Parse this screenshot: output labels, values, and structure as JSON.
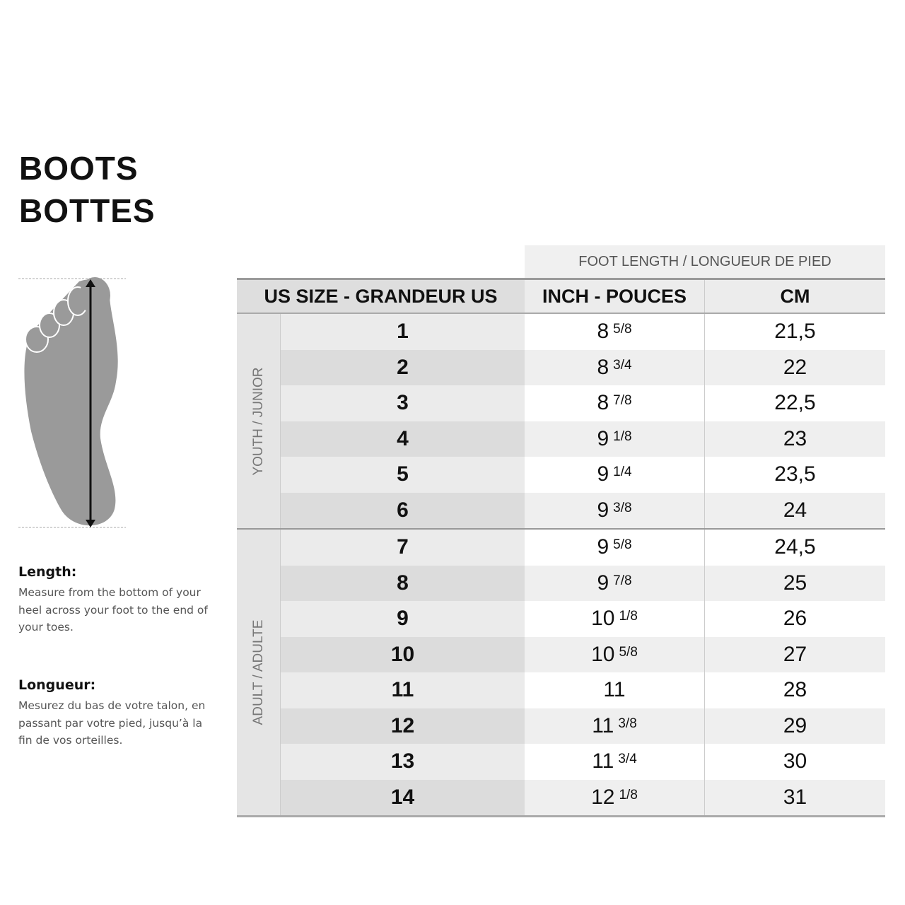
{
  "title": [
    "BOOTS",
    "BOTTES"
  ],
  "foot_icon": "foot-length-diagram",
  "notes": [
    {
      "heading": "Length:",
      "text": "Measure from the bottom of your heel across your foot to the end of your toes."
    },
    {
      "heading": "Longueur:",
      "text": "Mesurez du bas de votre talon, en passant par votre pied, jusqu’à la fin de vos orteilles."
    }
  ],
  "table": {
    "super_header": "FOOT LENGTH / LONGUEUR DE PIED",
    "headers": [
      "US SIZE - GRANDEUR US",
      "INCH - POUCES",
      "CM"
    ],
    "groups": [
      {
        "label": "YOUTH / JUNIOR",
        "rows": [
          {
            "size": "1",
            "inch": "8",
            "frac": "5/8",
            "cm": "21,5"
          },
          {
            "size": "2",
            "inch": "8",
            "frac": "3/4",
            "cm": "22"
          },
          {
            "size": "3",
            "inch": "8",
            "frac": "7/8",
            "cm": "22,5"
          },
          {
            "size": "4",
            "inch": "9",
            "frac": "1/8",
            "cm": "23"
          },
          {
            "size": "5",
            "inch": "9",
            "frac": "1/4",
            "cm": "23,5"
          },
          {
            "size": "6",
            "inch": "9",
            "frac": "3/8",
            "cm": "24"
          }
        ]
      },
      {
        "label": "ADULT / ADULTE",
        "rows": [
          {
            "size": "7",
            "inch": "9",
            "frac": "5/8",
            "cm": "24,5"
          },
          {
            "size": "8",
            "inch": "9",
            "frac": "7/8",
            "cm": "25"
          },
          {
            "size": "9",
            "inch": "10",
            "frac": "1/8",
            "cm": "26"
          },
          {
            "size": "10",
            "inch": "10",
            "frac": "5/8",
            "cm": "27"
          },
          {
            "size": "11",
            "inch": "11",
            "frac": "",
            "cm": "28"
          },
          {
            "size": "12",
            "inch": "11",
            "frac": "3/8",
            "cm": "29"
          },
          {
            "size": "13",
            "inch": "11",
            "frac": "3/4",
            "cm": "30"
          },
          {
            "size": "14",
            "inch": "12",
            "frac": "1/8",
            "cm": "31"
          }
        ]
      }
    ]
  }
}
